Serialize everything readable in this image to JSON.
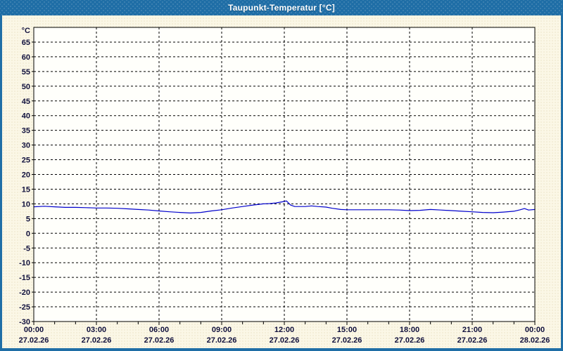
{
  "window": {
    "title": "Taupunkt-Temperatur [°C]"
  },
  "colors": {
    "titlebar": "#1f6ea6",
    "titlebar_text": "#ffffff",
    "window_border": "#1f6ea6",
    "background": "#fbf7e6",
    "plot_background": "#fffffb",
    "plot_border": "#000000",
    "gridline": "#000000",
    "axis_text": "#10103c",
    "line": "#0000cc"
  },
  "chart_data": {
    "type": "line",
    "title": "Taupunkt-Temperatur [°C]",
    "ylabel": "°C",
    "xlabel": "",
    "ylim": [
      -30,
      70
    ],
    "yticks": [
      65,
      60,
      55,
      50,
      45,
      40,
      35,
      30,
      25,
      20,
      15,
      10,
      5,
      0,
      -5,
      -10,
      -15,
      -20,
      -25,
      -30
    ],
    "x_unit": "hours",
    "xlim": [
      0,
      24
    ],
    "xticks": [
      {
        "hour": 0,
        "time": "00:00",
        "date": "27.02.26"
      },
      {
        "hour": 3,
        "time": "03:00",
        "date": "27.02.26"
      },
      {
        "hour": 6,
        "time": "06:00",
        "date": "27.02.26"
      },
      {
        "hour": 9,
        "time": "09:00",
        "date": "27.02.26"
      },
      {
        "hour": 12,
        "time": "12:00",
        "date": "27.02.26"
      },
      {
        "hour": 15,
        "time": "15:00",
        "date": "27.02.26"
      },
      {
        "hour": 18,
        "time": "18:00",
        "date": "27.02.26"
      },
      {
        "hour": 21,
        "time": "21:00",
        "date": "27.02.26"
      },
      {
        "hour": 24,
        "time": "00:00",
        "date": "28.02.26"
      }
    ],
    "minor_xtick_step_hours": 1,
    "grid": "dashed",
    "legend": "none",
    "series": [
      {
        "name": "Taupunkt-Temperatur",
        "color": "#0000cc",
        "points": [
          [
            0.0,
            9.0
          ],
          [
            0.5,
            9.2
          ],
          [
            1.0,
            9.0
          ],
          [
            1.5,
            8.8
          ],
          [
            2.0,
            8.8
          ],
          [
            2.5,
            8.7
          ],
          [
            3.0,
            8.6
          ],
          [
            3.5,
            8.6
          ],
          [
            4.0,
            8.5
          ],
          [
            4.5,
            8.3
          ],
          [
            5.0,
            8.1
          ],
          [
            5.5,
            7.9
          ],
          [
            6.0,
            7.6
          ],
          [
            6.5,
            7.3
          ],
          [
            7.0,
            7.1
          ],
          [
            7.5,
            6.9
          ],
          [
            8.0,
            7.1
          ],
          [
            8.5,
            7.6
          ],
          [
            9.0,
            8.0
          ],
          [
            9.5,
            8.6
          ],
          [
            10.0,
            9.1
          ],
          [
            10.5,
            9.6
          ],
          [
            11.0,
            10.0
          ],
          [
            11.3,
            10.1
          ],
          [
            11.6,
            10.3
          ],
          [
            11.9,
            10.7
          ],
          [
            12.1,
            11.0
          ],
          [
            12.3,
            9.6
          ],
          [
            12.5,
            9.1
          ],
          [
            13.0,
            9.1
          ],
          [
            13.3,
            9.3
          ],
          [
            13.6,
            9.1
          ],
          [
            14.0,
            8.9
          ],
          [
            14.3,
            8.5
          ],
          [
            14.7,
            8.1
          ],
          [
            15.0,
            8.0
          ],
          [
            15.5,
            8.0
          ],
          [
            16.0,
            8.0
          ],
          [
            16.5,
            8.0
          ],
          [
            17.0,
            8.0
          ],
          [
            17.5,
            7.9
          ],
          [
            18.0,
            7.7
          ],
          [
            18.5,
            7.8
          ],
          [
            19.0,
            8.1
          ],
          [
            19.5,
            7.9
          ],
          [
            20.0,
            7.7
          ],
          [
            20.5,
            7.5
          ],
          [
            21.0,
            7.3
          ],
          [
            21.5,
            7.1
          ],
          [
            22.0,
            7.0
          ],
          [
            22.5,
            7.2
          ],
          [
            23.0,
            7.5
          ],
          [
            23.3,
            8.0
          ],
          [
            23.5,
            8.4
          ],
          [
            23.7,
            7.9
          ],
          [
            24.0,
            8.1
          ]
        ]
      }
    ]
  }
}
